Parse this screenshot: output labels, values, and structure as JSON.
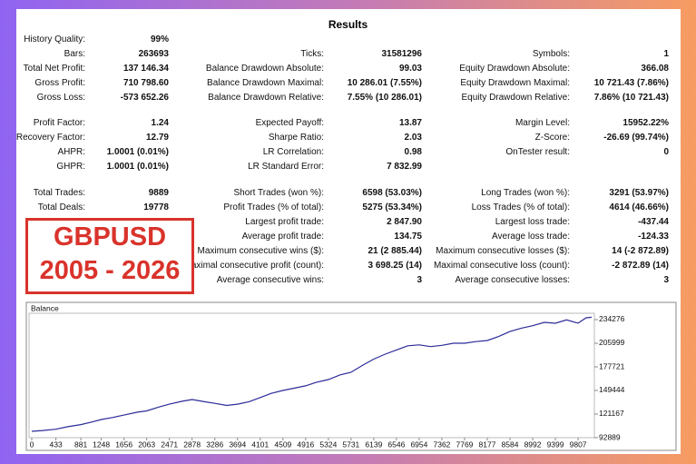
{
  "header": {
    "title": "Results"
  },
  "sections": [
    {
      "rows": [
        [
          {
            "label": "History Quality:",
            "value": "99%"
          },
          null,
          null
        ],
        [
          {
            "label": "Bars:",
            "value": "263693"
          },
          {
            "label": "Ticks:",
            "value": "31581296"
          },
          {
            "label": "Symbols:",
            "value": "1"
          }
        ],
        [
          {
            "label": "Total Net Profit:",
            "value": "137 146.34"
          },
          {
            "label": "Balance Drawdown Absolute:",
            "value": "99.03"
          },
          {
            "label": "Equity Drawdown Absolute:",
            "value": "366.08"
          }
        ],
        [
          {
            "label": "Gross Profit:",
            "value": "710 798.60"
          },
          {
            "label": "Balance Drawdown Maximal:",
            "value": "10 286.01 (7.55%)"
          },
          {
            "label": "Equity Drawdown Maximal:",
            "value": "10 721.43 (7.86%)"
          }
        ],
        [
          {
            "label": "Gross Loss:",
            "value": "-573 652.26"
          },
          {
            "label": "Balance Drawdown Relative:",
            "value": "7.55% (10 286.01)"
          },
          {
            "label": "Equity Drawdown Relative:",
            "value": "7.86% (10 721.43)"
          }
        ]
      ]
    },
    {
      "rows": [
        [
          {
            "label": "Profit Factor:",
            "value": "1.24"
          },
          {
            "label": "Expected Payoff:",
            "value": "13.87"
          },
          {
            "label": "Margin Level:",
            "value": "15952.22%"
          }
        ],
        [
          {
            "label": "Recovery Factor:",
            "value": "12.79"
          },
          {
            "label": "Sharpe Ratio:",
            "value": "2.03"
          },
          {
            "label": "Z-Score:",
            "value": "-26.69 (99.74%)"
          }
        ],
        [
          {
            "label": "AHPR:",
            "value": "1.0001 (0.01%)"
          },
          {
            "label": "LR Correlation:",
            "value": "0.98"
          },
          {
            "label": "OnTester result:",
            "value": "0"
          }
        ],
        [
          {
            "label": "GHPR:",
            "value": "1.0001 (0.01%)"
          },
          {
            "label": "LR Standard Error:",
            "value": "7 832.99"
          },
          null
        ]
      ]
    },
    {
      "rows": [
        [
          {
            "label": "Total Trades:",
            "value": "9889"
          },
          {
            "label": "Short Trades (won %):",
            "value": "6598 (53.03%)"
          },
          {
            "label": "Long Trades (won %):",
            "value": "3291 (53.97%)"
          }
        ],
        [
          {
            "label": "Total Deals:",
            "value": "19778"
          },
          {
            "label": "Profit Trades (% of total):",
            "value": "5275 (53.34%)"
          },
          {
            "label": "Loss Trades (% of total):",
            "value": "4614 (46.66%)"
          }
        ],
        [
          null,
          {
            "label": "Largest profit trade:",
            "value": "2 847.90"
          },
          {
            "label": "Largest loss trade:",
            "value": "-437.44"
          }
        ],
        [
          null,
          {
            "label": "Average profit trade:",
            "value": "134.75"
          },
          {
            "label": "Average loss trade:",
            "value": "-124.33"
          }
        ],
        [
          null,
          {
            "label": "Maximum consecutive wins ($):",
            "value": "21 (2 885.44)"
          },
          {
            "label": "Maximum consecutive losses ($):",
            "value": "14 (-2 872.89)"
          }
        ],
        [
          null,
          {
            "label": "Maximal consecutive profit (count):",
            "value": "3 698.25 (14)"
          },
          {
            "label": "Maximal consecutive loss (count):",
            "value": "-2 872.89 (14)"
          }
        ],
        [
          null,
          {
            "label": "Average consecutive wins:",
            "value": "3"
          },
          {
            "label": "Average consecutive losses:",
            "value": "3"
          }
        ]
      ]
    }
  ],
  "badge": {
    "lines": [
      "GBPUSD",
      "2005 - 2026"
    ]
  },
  "balance_chart": {
    "type": "line",
    "title": "Balance",
    "color": "#2b2b9a",
    "x": [
      0,
      200,
      433,
      650,
      881,
      1100,
      1248,
      1450,
      1656,
      1900,
      2063,
      2300,
      2471,
      2700,
      2878,
      3100,
      3286,
      3500,
      3694,
      3900,
      4101,
      4300,
      4509,
      4700,
      4916,
      5100,
      5324,
      5531,
      5731,
      5950,
      6139,
      6346,
      6546,
      6750,
      6954,
      7162,
      7362,
      7569,
      7769,
      7970,
      8177,
      8380,
      8584,
      8790,
      8992,
      9200,
      9399,
      9600,
      9807,
      9950,
      10050
    ],
    "values": [
      100500,
      101500,
      103000,
      106000,
      108500,
      112000,
      114600,
      117000,
      120000,
      123500,
      125000,
      130000,
      133000,
      136500,
      138600,
      136000,
      134000,
      131500,
      133000,
      136000,
      141000,
      146000,
      149400,
      152000,
      155000,
      159000,
      162500,
      168000,
      171200,
      180000,
      187000,
      193000,
      198000,
      203000,
      204000,
      202000,
      203500,
      206000,
      206000,
      208000,
      209300,
      214000,
      220000,
      224000,
      227000,
      231000,
      229900,
      234000,
      230000,
      236500,
      237146
    ],
    "xlim": [
      0,
      10050
    ],
    "ylim": [
      92889,
      241889
    ],
    "xticks": [
      0,
      433,
      881,
      1248,
      1656,
      2063,
      2471,
      2878,
      3286,
      3694,
      4101,
      4509,
      4916,
      5324,
      5731,
      6139,
      6546,
      6954,
      7362,
      7769,
      8177,
      8584,
      8992,
      9399,
      9807
    ],
    "yticks": [
      92889,
      121167,
      149444,
      177721,
      205999,
      234276
    ]
  }
}
